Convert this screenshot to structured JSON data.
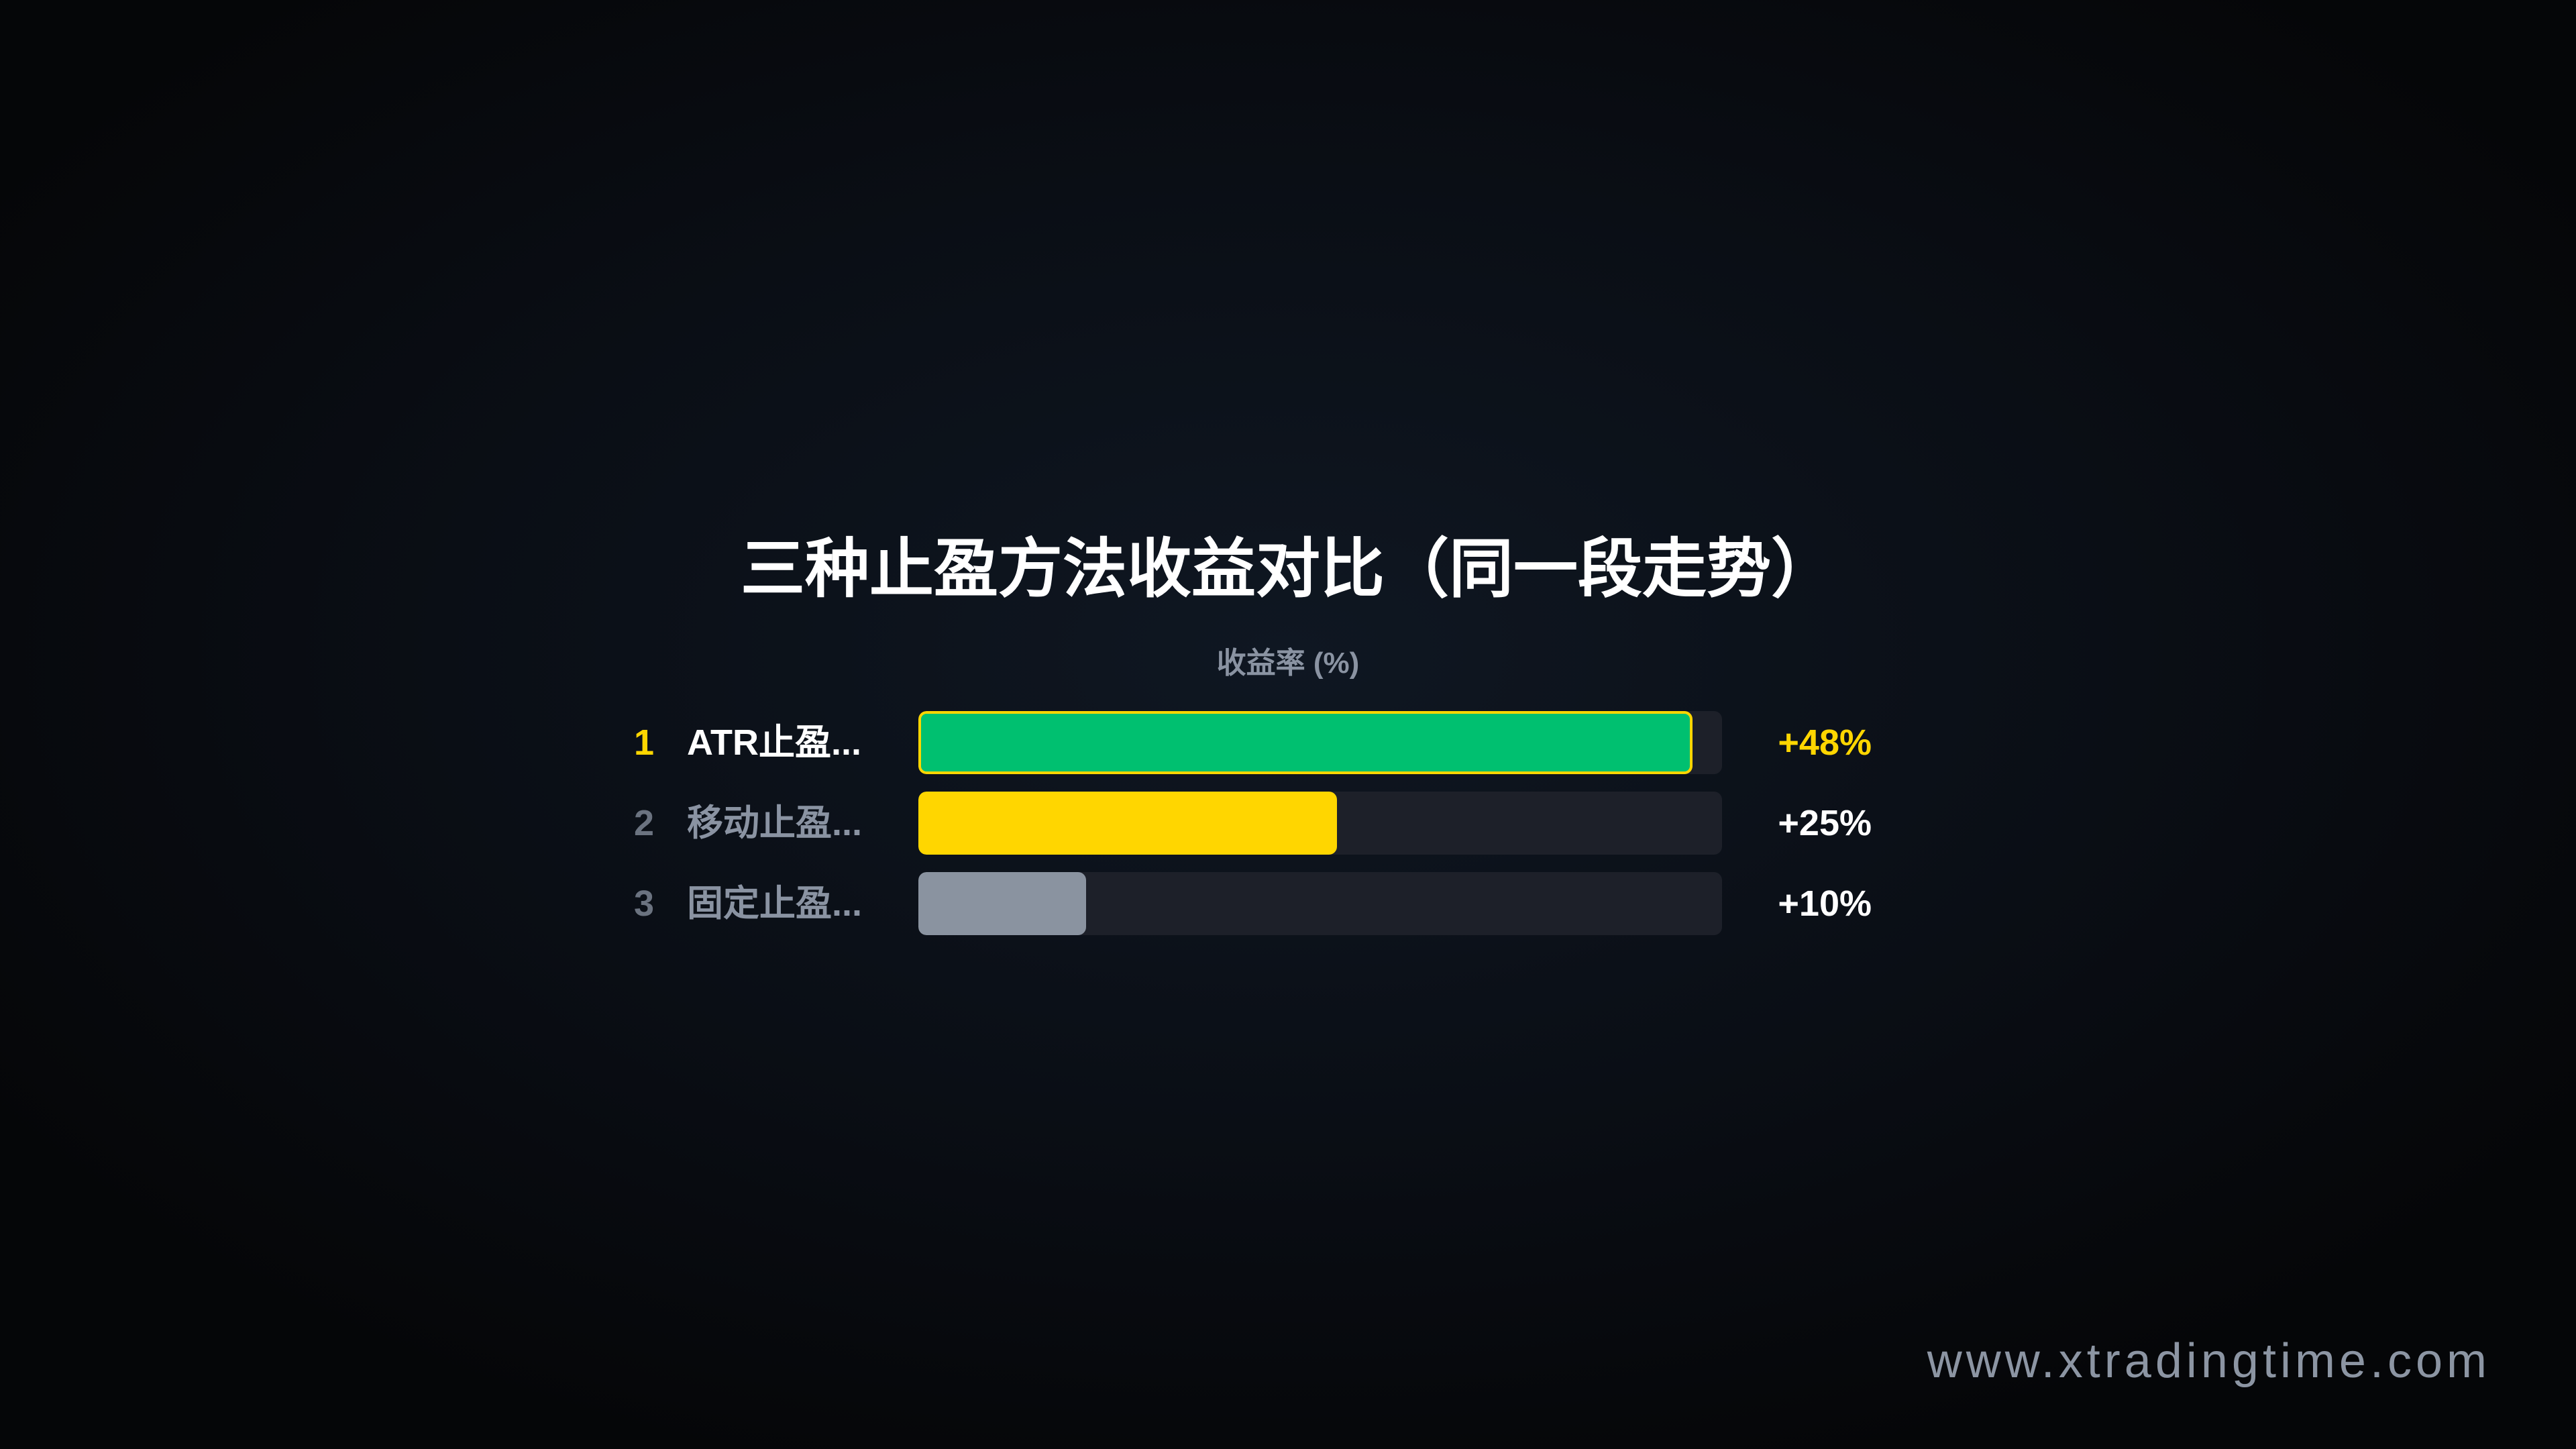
{
  "chart_data": {
    "type": "bar",
    "orientation": "horizontal",
    "title": "三种止盈方法收益对比（同一段走势）",
    "xlabel": "收益率 (%)",
    "categories": [
      "ATR止盈...",
      "移动止盈...",
      "固定止盈..."
    ],
    "ranks": [
      "1",
      "2",
      "3"
    ],
    "values": [
      48,
      25,
      10
    ],
    "value_labels": [
      "+48%",
      "+25%",
      "+10%"
    ],
    "xlim": [
      0,
      48
    ],
    "bar_colors": [
      "#00c070",
      "#ffd600",
      "#8a93a0"
    ],
    "highlight_color": "#ffd600",
    "track_color": "#1d2029",
    "grid": false
  },
  "footer": {
    "watermark": "www.xtradingtime.com"
  }
}
